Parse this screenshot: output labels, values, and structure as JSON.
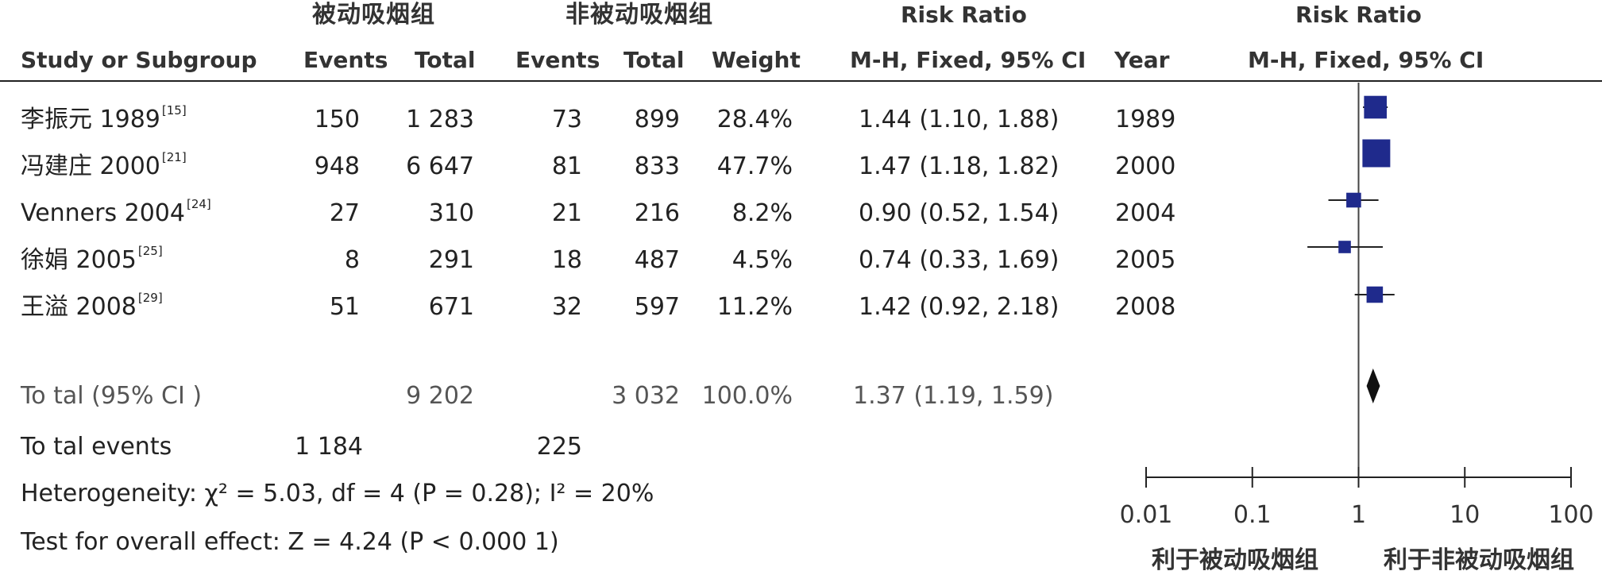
{
  "header": {
    "group_exposed": "被动吸烟组",
    "group_control": "非被动吸烟组",
    "rr_title_left": "Risk Ratio",
    "rr_title_right": "Risk Ratio",
    "col_study": "Study or Subgroup",
    "col_events_1": "Events",
    "col_total_1": "Total",
    "col_events_2": "Events",
    "col_total_2": "Total",
    "col_weight": "Weight",
    "col_method_left": "M-H, Fixed, 95% CI",
    "col_year": "Year",
    "col_method_right": "M-H, Fixed, 95% CI"
  },
  "studies": [
    {
      "name": "李振元 1989",
      "ref": "[15]",
      "events_exp": "150",
      "total_exp": "1 283",
      "events_ctl": "73",
      "total_ctl": "899",
      "weight": "28.4%",
      "ci_text": "1.44 (1.10, 1.88)",
      "year": "1989"
    },
    {
      "name": "冯建庄 2000",
      "ref": "[21]",
      "events_exp": "948",
      "total_exp": "6 647",
      "events_ctl": "81",
      "total_ctl": "833",
      "weight": "47.7%",
      "ci_text": "1.47 (1.18, 1.82)",
      "year": "2000"
    },
    {
      "name": "Venners 2004",
      "ref": "[24]",
      "events_exp": "27",
      "total_exp": "310",
      "events_ctl": "21",
      "total_ctl": "216",
      "weight": "8.2%",
      "ci_text": "0.90 (0.52, 1.54)",
      "year": "2004"
    },
    {
      "name": "徐娟 2005",
      "ref": "[25]",
      "events_exp": "8",
      "total_exp": "291",
      "events_ctl": "18",
      "total_ctl": "487",
      "weight": "4.5%",
      "ci_text": "0.74 (0.33, 1.69)",
      "year": "2005"
    },
    {
      "name": "王溢 2008",
      "ref": "[29]",
      "events_exp": "51",
      "total_exp": "671",
      "events_ctl": "32",
      "total_ctl": "597",
      "weight": "11.2%",
      "ci_text": "1.42 (0.92, 2.18)",
      "year": "2008"
    }
  ],
  "total": {
    "label": "To tal (95% CI )",
    "total_exp": "9 202",
    "total_ctl": "3 032",
    "weight": "100.0%",
    "ci_text": "1.37 (1.19, 1.59)"
  },
  "total_events": {
    "label": "To tal events",
    "exp": "1 184",
    "ctl": "225"
  },
  "heterogeneity": "Heterogeneity: χ² = 5.03, df = 4 (P = 0.28); I² = 20%",
  "overall_effect": "Test for overall effect: Z = 4.24 (P < 0.000 1)",
  "axis": {
    "favours_left": "利于被动吸烟组",
    "favours_right": "利于非被动吸烟组"
  },
  "chart_data": {
    "type": "forest",
    "scale": "log",
    "xlim": [
      0.01,
      100
    ],
    "xticks": [
      0.01,
      0.1,
      1,
      10,
      100
    ],
    "tick_labels": [
      "0.01",
      "0.1",
      "1",
      "10",
      "100"
    ],
    "null_line": 1,
    "studies": [
      {
        "rr": 1.44,
        "lo": 1.1,
        "hi": 1.88,
        "weight": 28.4
      },
      {
        "rr": 1.47,
        "lo": 1.18,
        "hi": 1.82,
        "weight": 47.7
      },
      {
        "rr": 0.9,
        "lo": 0.52,
        "hi": 1.54,
        "weight": 8.2
      },
      {
        "rr": 0.74,
        "lo": 0.33,
        "hi": 1.69,
        "weight": 4.5
      },
      {
        "rr": 1.42,
        "lo": 0.92,
        "hi": 2.18,
        "weight": 11.2
      }
    ],
    "pooled": {
      "rr": 1.37,
      "lo": 1.19,
      "hi": 1.59
    },
    "colors": {
      "square": "#1f2a8c",
      "line": "#222222",
      "diamond": "#111111"
    }
  }
}
